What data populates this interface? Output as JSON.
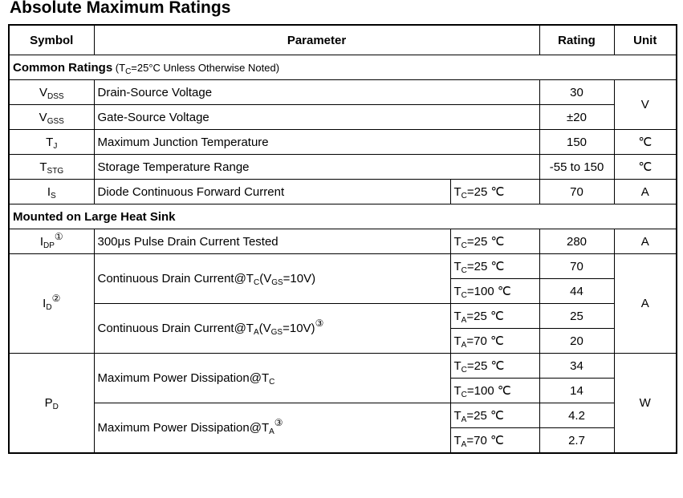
{
  "title": "Absolute Maximum Ratings",
  "headers": {
    "symbol": "Symbol",
    "parameter": "Parameter",
    "rating": "Rating",
    "unit": "Unit"
  },
  "section1": {
    "label": "Common Ratings",
    "note_open": " (T",
    "note_sub": "C",
    "note_rest": "=25°C Unless Otherwise Noted)"
  },
  "vdss": {
    "sym": "V",
    "sub": "DSS",
    "param": "Drain-Source Voltage",
    "rating": "30"
  },
  "vgss": {
    "sym": "V",
    "sub": "GSS",
    "param": "Gate-Source Voltage",
    "rating": "±20"
  },
  "v_unit": "V",
  "tj": {
    "sym": "T",
    "sub": "J",
    "param": "Maximum Junction Temperature",
    "rating": "150",
    "unit": "℃"
  },
  "tstg": {
    "sym": "T",
    "sub": "STG",
    "param": "Storage Temperature Range",
    "rating": "-55 to 150",
    "unit": "℃"
  },
  "is": {
    "sym": "I",
    "sub": "S",
    "param": "Diode Continuous Forward Current",
    "cond_t": "T",
    "cond_sub": "C",
    "cond_rest": "=25 ℃",
    "rating": "70",
    "unit": "A"
  },
  "section2": {
    "label": "Mounted on Large Heat Sink"
  },
  "idp": {
    "sym": "I",
    "sub": "DP",
    "sup": "①",
    "param": "300μs Pulse Drain Current Tested",
    "cond_t": "T",
    "cond_sub": "C",
    "cond_rest": "=25 ℃",
    "rating": "280",
    "unit": "A"
  },
  "id": {
    "sym": "I",
    "sub": "D",
    "sup": "②",
    "unit": "A",
    "param1_a": "Continuous Drain Current@T",
    "param1_sub": "C",
    "param1_b": "(V",
    "param1_sub2": "GS",
    "param1_c": "=10V)",
    "param2_a": "Continuous Drain Current@T",
    "param2_sub": "A",
    "param2_b": "(V",
    "param2_sub2": "GS",
    "param2_c": "=10V)",
    "param2_sup": "③",
    "rows": [
      {
        "t": "T",
        "sub": "C",
        "rest": "=25 ℃",
        "rating": "70"
      },
      {
        "t": "T",
        "sub": "C",
        "rest": "=100 ℃",
        "rating": "44"
      },
      {
        "t": "T",
        "sub": "A",
        "rest": "=25 ℃",
        "rating": "25"
      },
      {
        "t": "T",
        "sub": "A",
        "rest": "=70 ℃",
        "rating": "20"
      }
    ]
  },
  "pd": {
    "sym": "P",
    "sub": "D",
    "unit": "W",
    "param1_a": "Maximum Power Dissipation@T",
    "param1_sub": "C",
    "param2_a": "Maximum Power Dissipation@T",
    "param2_sub": "A",
    "param2_sup": "③",
    "rows": [
      {
        "t": "T",
        "sub": "C",
        "rest": "=25 ℃",
        "rating": "34"
      },
      {
        "t": "T",
        "sub": "C",
        "rest": "=100 ℃",
        "rating": "14"
      },
      {
        "t": "T",
        "sub": "A",
        "rest": "=25 ℃",
        "rating": "4.2"
      },
      {
        "t": "T",
        "sub": "A",
        "rest": "=70 ℃",
        "rating": "2.7"
      }
    ]
  }
}
